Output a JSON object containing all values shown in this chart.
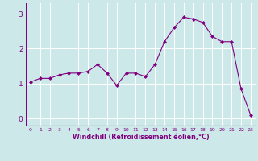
{
  "x": [
    0,
    1,
    2,
    3,
    4,
    5,
    6,
    7,
    8,
    9,
    10,
    11,
    12,
    13,
    14,
    15,
    16,
    17,
    18,
    19,
    20,
    21,
    22,
    23
  ],
  "y": [
    1.05,
    1.15,
    1.15,
    1.25,
    1.3,
    1.3,
    1.35,
    1.55,
    1.3,
    0.95,
    1.3,
    1.3,
    1.2,
    1.55,
    2.2,
    2.6,
    2.9,
    2.85,
    2.75,
    2.35,
    2.2,
    2.2,
    0.85,
    0.1
  ],
  "line_color": "#800080",
  "marker": "D",
  "marker_size": 2,
  "bg_color": "#cce8e8",
  "grid_color": "#ffffff",
  "xlabel": "Windchill (Refroidissement éolien,°C)",
  "xlabel_color": "#800080",
  "tick_color": "#800080",
  "ylim": [
    -0.2,
    3.3
  ],
  "xlim": [
    -0.5,
    23.5
  ],
  "yticks": [
    0,
    1,
    2,
    3
  ],
  "xticks": [
    0,
    1,
    2,
    3,
    4,
    5,
    6,
    7,
    8,
    9,
    10,
    11,
    12,
    13,
    14,
    15,
    16,
    17,
    18,
    19,
    20,
    21,
    22,
    23
  ]
}
